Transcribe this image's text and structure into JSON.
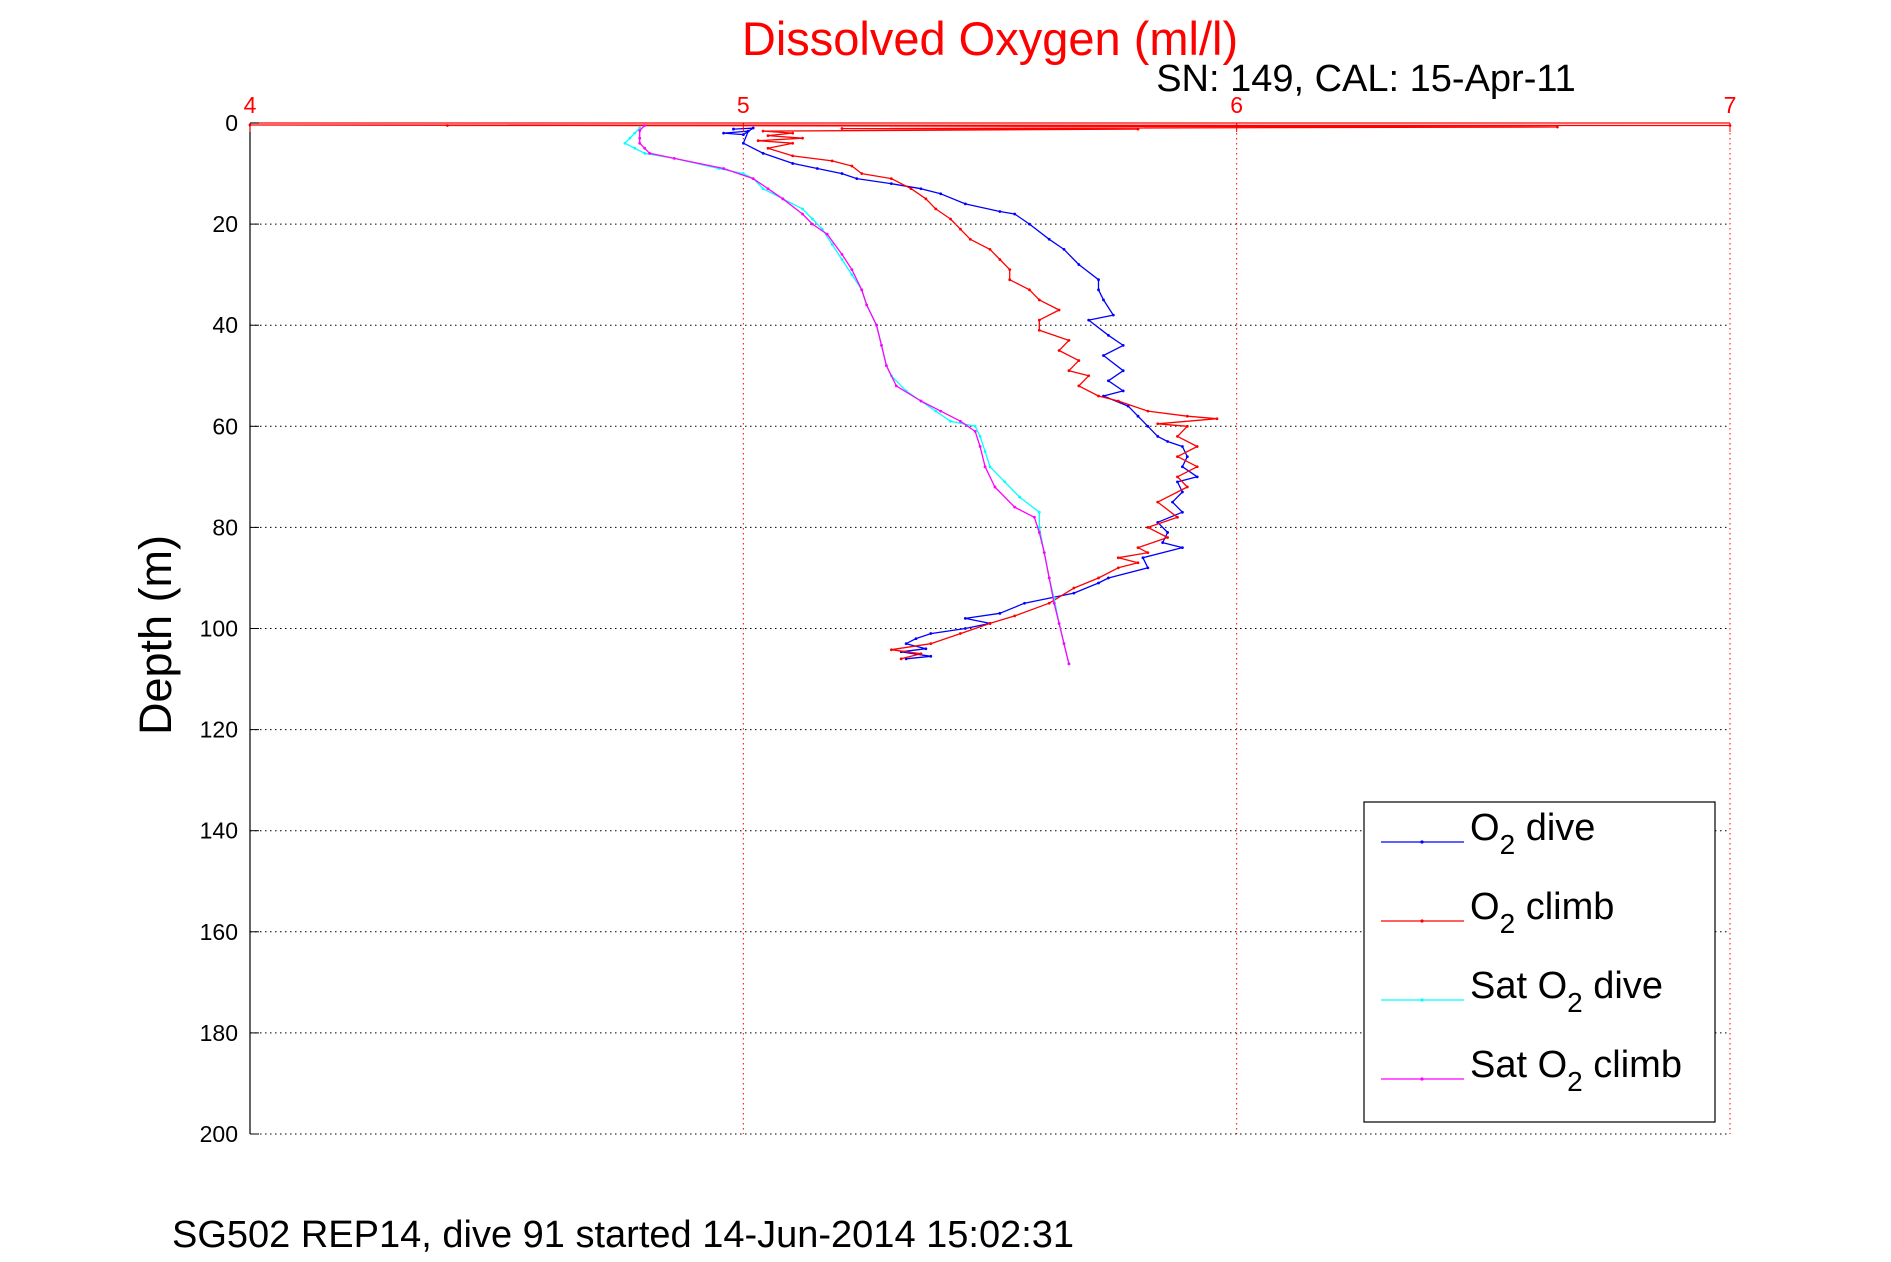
{
  "chart_data": {
    "type": "line",
    "title": "Dissolved Oxygen (ml/l)",
    "subtitle": "SN: 149, CAL: 15-Apr-11",
    "ylabel": "Depth (m)",
    "footer": "SG502 REP14, dive 91 started 14-Jun-2014 15:02:31",
    "xlim": [
      4,
      7
    ],
    "ylim": [
      0,
      200
    ],
    "y_reversed": true,
    "x_axis_position": "top",
    "x_ticks": [
      4,
      5,
      6,
      7
    ],
    "y_ticks": [
      0,
      20,
      40,
      60,
      80,
      100,
      120,
      140,
      160,
      180,
      200
    ],
    "grid": true,
    "legend_position": "bottom-right",
    "colors": {
      "title": "#ff0000",
      "x_ticks": "#ff0000",
      "axis": "#000000",
      "grid": "#000000",
      "xgrid": "#ff0000"
    },
    "series": [
      {
        "name": "O2 dive",
        "legend": {
          "main": "O",
          "sub": "2",
          "rest": " dive"
        },
        "color": "#0000ff",
        "points": [
          [
            4.98,
            1.2
          ],
          [
            5.02,
            1.0
          ],
          [
            5.0,
            2.3
          ],
          [
            4.96,
            2.0
          ],
          [
            5.01,
            1.6
          ],
          [
            5.0,
            4
          ],
          [
            5.04,
            6
          ],
          [
            5.1,
            8
          ],
          [
            5.15,
            9
          ],
          [
            5.2,
            10
          ],
          [
            5.23,
            11
          ],
          [
            5.3,
            12
          ],
          [
            5.36,
            13
          ],
          [
            5.4,
            14
          ],
          [
            5.45,
            16
          ],
          [
            5.52,
            17.5
          ],
          [
            5.55,
            18
          ],
          [
            5.58,
            20
          ],
          [
            5.62,
            23
          ],
          [
            5.65,
            25
          ],
          [
            5.68,
            28
          ],
          [
            5.72,
            31
          ],
          [
            5.72,
            33
          ],
          [
            5.73,
            35
          ],
          [
            5.75,
            38
          ],
          [
            5.7,
            39
          ],
          [
            5.74,
            42
          ],
          [
            5.77,
            44
          ],
          [
            5.73,
            46
          ],
          [
            5.77,
            49
          ],
          [
            5.74,
            51
          ],
          [
            5.77,
            53
          ],
          [
            5.73,
            54
          ],
          [
            5.78,
            56
          ],
          [
            5.8,
            58
          ],
          [
            5.82,
            60
          ],
          [
            5.84,
            62
          ],
          [
            5.86,
            63
          ],
          [
            5.89,
            64
          ],
          [
            5.9,
            66
          ],
          [
            5.89,
            68
          ],
          [
            5.92,
            70
          ],
          [
            5.88,
            71
          ],
          [
            5.89,
            73
          ],
          [
            5.87,
            75
          ],
          [
            5.89,
            77
          ],
          [
            5.84,
            79
          ],
          [
            5.86,
            81
          ],
          [
            5.85,
            83
          ],
          [
            5.89,
            84
          ],
          [
            5.81,
            86
          ],
          [
            5.82,
            88
          ],
          [
            5.74,
            90
          ],
          [
            5.72,
            91
          ],
          [
            5.67,
            93
          ],
          [
            5.57,
            95
          ],
          [
            5.52,
            97
          ],
          [
            5.45,
            98
          ],
          [
            5.5,
            99
          ],
          [
            5.45,
            100
          ],
          [
            5.38,
            101
          ],
          [
            5.35,
            102
          ],
          [
            5.33,
            103
          ],
          [
            5.37,
            104
          ],
          [
            5.32,
            104.6
          ],
          [
            5.38,
            105.5
          ],
          [
            5.33,
            106
          ]
        ]
      },
      {
        "name": "O2 climb",
        "legend": {
          "main": "O",
          "sub": "2",
          "rest": " climb"
        },
        "color": "#ff0000",
        "points": [
          [
            5.32,
            106
          ],
          [
            5.36,
            105
          ],
          [
            5.3,
            104.2
          ],
          [
            5.38,
            103
          ],
          [
            5.44,
            101
          ],
          [
            5.5,
            99
          ],
          [
            5.55,
            97.5
          ],
          [
            5.62,
            95
          ],
          [
            5.67,
            92
          ],
          [
            5.72,
            90
          ],
          [
            5.76,
            88
          ],
          [
            5.8,
            87
          ],
          [
            5.76,
            86
          ],
          [
            5.82,
            85
          ],
          [
            5.8,
            84
          ],
          [
            5.86,
            82
          ],
          [
            5.82,
            80
          ],
          [
            5.88,
            78
          ],
          [
            5.84,
            75
          ],
          [
            5.9,
            72
          ],
          [
            5.88,
            70
          ],
          [
            5.92,
            68
          ],
          [
            5.88,
            66
          ],
          [
            5.92,
            64
          ],
          [
            5.88,
            62
          ],
          [
            5.9,
            60
          ],
          [
            5.84,
            59.5
          ],
          [
            5.96,
            58.5
          ],
          [
            5.9,
            58
          ],
          [
            5.82,
            57
          ],
          [
            5.76,
            55
          ],
          [
            5.72,
            54
          ],
          [
            5.68,
            52
          ],
          [
            5.7,
            50
          ],
          [
            5.66,
            49
          ],
          [
            5.68,
            47
          ],
          [
            5.64,
            45
          ],
          [
            5.66,
            43
          ],
          [
            5.6,
            41
          ],
          [
            5.6,
            39
          ],
          [
            5.64,
            37
          ],
          [
            5.6,
            35
          ],
          [
            5.58,
            33
          ],
          [
            5.54,
            31
          ],
          [
            5.54,
            29
          ],
          [
            5.52,
            27
          ],
          [
            5.5,
            25
          ],
          [
            5.46,
            23
          ],
          [
            5.44,
            21
          ],
          [
            5.42,
            19
          ],
          [
            5.39,
            17
          ],
          [
            5.37,
            15
          ],
          [
            5.34,
            13
          ],
          [
            5.3,
            11
          ],
          [
            5.24,
            10
          ],
          [
            5.22,
            8.5
          ],
          [
            5.18,
            7.5
          ],
          [
            5.1,
            6.5
          ],
          [
            5.05,
            5
          ],
          [
            5.1,
            4
          ],
          [
            5.03,
            3.5
          ],
          [
            5.12,
            3
          ],
          [
            5.05,
            2.5
          ],
          [
            5.1,
            2
          ],
          [
            5.04,
            1.6
          ],
          [
            5.8,
            1.2
          ],
          [
            5.2,
            1.1
          ],
          [
            6.65,
            0.8
          ],
          [
            4.0,
            0.4
          ],
          [
            7.0,
            0.5
          ],
          [
            4.4,
            0.5
          ]
        ]
      },
      {
        "name": "Sat O2 dive",
        "legend": {
          "main": "Sat O",
          "sub": "2",
          "rest": " dive"
        },
        "color": "#00ffff",
        "points": [
          [
            4.79,
            1
          ],
          [
            4.78,
            2
          ],
          [
            4.77,
            3
          ],
          [
            4.76,
            4
          ],
          [
            4.78,
            5
          ],
          [
            4.8,
            6
          ],
          [
            4.86,
            7
          ],
          [
            4.95,
            9
          ],
          [
            5.0,
            10
          ],
          [
            5.02,
            11
          ],
          [
            5.04,
            13
          ],
          [
            5.08,
            15
          ],
          [
            5.12,
            17
          ],
          [
            5.14,
            19
          ],
          [
            5.16,
            21
          ],
          [
            5.18,
            24
          ],
          [
            5.2,
            27
          ],
          [
            5.22,
            30
          ],
          [
            5.24,
            33
          ],
          [
            5.25,
            36
          ],
          [
            5.27,
            40
          ],
          [
            5.28,
            44
          ],
          [
            5.29,
            48
          ],
          [
            5.3,
            50
          ],
          [
            5.33,
            53
          ],
          [
            5.36,
            55
          ],
          [
            5.39,
            57
          ],
          [
            5.42,
            59
          ],
          [
            5.47,
            60
          ],
          [
            5.48,
            62
          ],
          [
            5.49,
            65
          ],
          [
            5.5,
            68
          ],
          [
            5.53,
            71
          ],
          [
            5.56,
            74
          ],
          [
            5.6,
            77
          ],
          [
            5.6,
            80
          ],
          [
            5.61,
            85
          ],
          [
            5.62,
            90
          ],
          [
            5.63,
            94
          ],
          [
            5.64,
            99
          ],
          [
            5.65,
            103
          ],
          [
            5.66,
            107
          ]
        ]
      },
      {
        "name": "Sat O2 climb",
        "legend": {
          "main": "Sat O",
          "sub": "2",
          "rest": " climb"
        },
        "color": "#ff00ff",
        "points": [
          [
            5.66,
            107
          ],
          [
            5.65,
            103
          ],
          [
            5.64,
            99
          ],
          [
            5.63,
            95
          ],
          [
            5.62,
            90
          ],
          [
            5.61,
            85
          ],
          [
            5.6,
            81
          ],
          [
            5.59,
            78
          ],
          [
            5.55,
            76
          ],
          [
            5.51,
            72
          ],
          [
            5.49,
            68
          ],
          [
            5.48,
            64
          ],
          [
            5.47,
            61
          ],
          [
            5.44,
            59
          ],
          [
            5.4,
            57
          ],
          [
            5.36,
            55
          ],
          [
            5.31,
            52
          ],
          [
            5.29,
            48
          ],
          [
            5.28,
            44
          ],
          [
            5.27,
            40
          ],
          [
            5.25,
            36
          ],
          [
            5.24,
            33
          ],
          [
            5.22,
            29
          ],
          [
            5.2,
            26
          ],
          [
            5.17,
            22
          ],
          [
            5.14,
            20
          ],
          [
            5.12,
            18
          ],
          [
            5.08,
            15
          ],
          [
            5.05,
            13
          ],
          [
            5.02,
            11
          ],
          [
            4.96,
            9
          ],
          [
            4.86,
            7
          ],
          [
            4.81,
            6
          ],
          [
            4.8,
            5
          ],
          [
            4.79,
            4
          ],
          [
            4.79,
            3
          ],
          [
            4.79,
            1.5
          ],
          [
            4.8,
            0.5
          ]
        ]
      }
    ]
  }
}
